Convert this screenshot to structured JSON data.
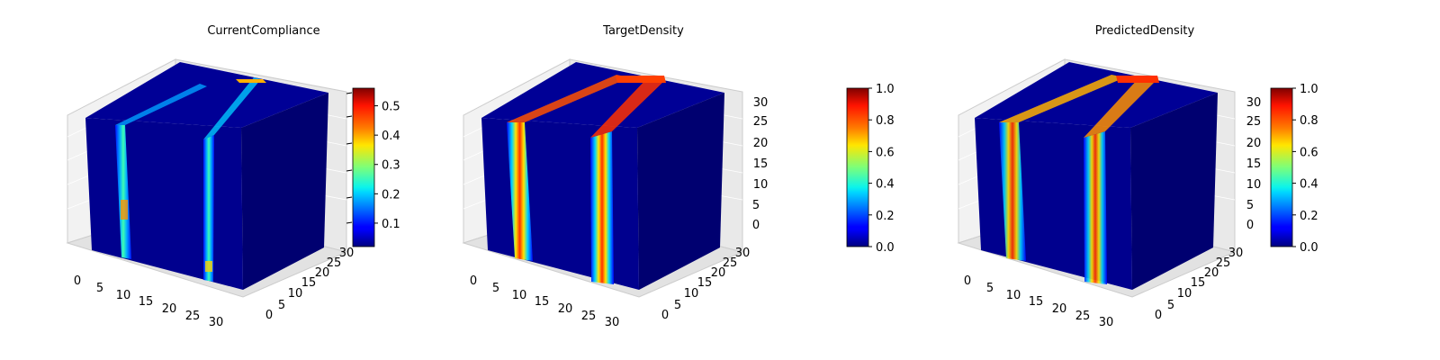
{
  "chart_data": [
    {
      "type": "voxel3d",
      "title": "CurrentCompliance",
      "xlim": [
        0,
        32
      ],
      "ylim": [
        0,
        32
      ],
      "zlim": [
        0,
        32
      ],
      "x_ticks": [
        0,
        5,
        10,
        15,
        20,
        25,
        30
      ],
      "y_ticks": [
        0,
        5,
        10,
        15,
        20,
        25,
        30
      ],
      "z_ticks": [],
      "colorbar": {
        "min": 0.02,
        "max": 0.56,
        "ticks": [
          0.1,
          0.2,
          0.3,
          0.4,
          0.5
        ],
        "tick_labels": [
          "0.1",
          "0.2",
          "0.3",
          "0.4",
          "0.5"
        ]
      },
      "colormap": "jet",
      "grid": true
    },
    {
      "type": "voxel3d",
      "title": "TargetDensity",
      "xlim": [
        0,
        32
      ],
      "ylim": [
        0,
        32
      ],
      "zlim": [
        0,
        32
      ],
      "x_ticks": [
        0,
        5,
        10,
        15,
        20,
        25,
        30
      ],
      "y_ticks": [
        0,
        5,
        10,
        15,
        20,
        25,
        30
      ],
      "z_ticks": [
        0,
        5,
        10,
        15,
        20,
        25,
        30
      ],
      "colorbar": {
        "min": 0.0,
        "max": 1.0,
        "ticks": [
          0.0,
          0.2,
          0.4,
          0.6,
          0.8,
          1.0
        ],
        "tick_labels": [
          "0.0",
          "0.2",
          "0.4",
          "0.6",
          "0.8",
          "1.0"
        ]
      },
      "colormap": "jet",
      "grid": true
    },
    {
      "type": "voxel3d",
      "title": "PredictedDensity",
      "xlim": [
        0,
        32
      ],
      "ylim": [
        0,
        32
      ],
      "zlim": [
        0,
        32
      ],
      "x_ticks": [
        0,
        5,
        10,
        15,
        20,
        25,
        30
      ],
      "y_ticks": [
        0,
        5,
        10,
        15,
        20,
        25,
        30
      ],
      "z_ticks": [
        0,
        5,
        10,
        15,
        20,
        25,
        30
      ],
      "colorbar": {
        "min": 0.0,
        "max": 1.0,
        "ticks": [
          0.0,
          0.2,
          0.4,
          0.6,
          0.8,
          1.0
        ],
        "tick_labels": [
          "0.0",
          "0.2",
          "0.4",
          "0.6",
          "0.8",
          "1.0"
        ]
      },
      "colormap": "jet",
      "grid": true
    }
  ]
}
